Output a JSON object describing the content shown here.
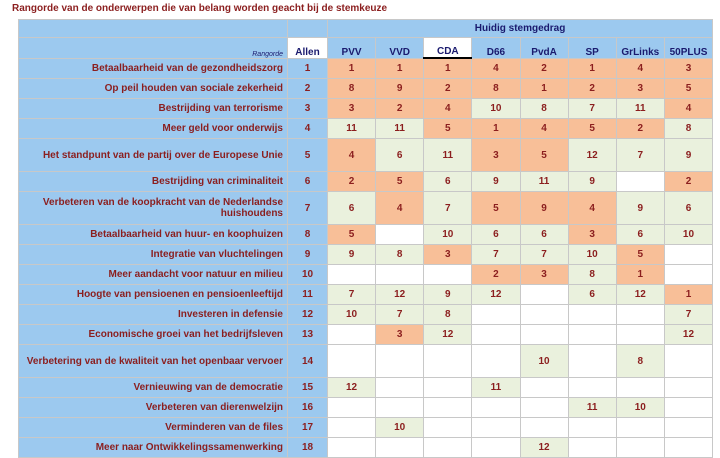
{
  "title": "Rangorde van de onderwerpen die van belang worden geacht bij de stemkeuze",
  "header": {
    "rangorde_label": "Rangorde",
    "allen_label": "Allen",
    "group_label": "Huidig stemgedrag",
    "parties": [
      "PVV",
      "VVD",
      "CDA",
      "D66",
      "PvdA",
      "SP",
      "GrLinks",
      "50PLUS"
    ]
  },
  "colors": {
    "peach": "#f8bf98",
    "green": "#eaf1dd",
    "blue": "#9cc9ef",
    "text": "#8b1e1e"
  },
  "rows": [
    {
      "label": "Betaalbaarheid van de gezondheidszorg",
      "rank": "1",
      "values": [
        "1",
        "1",
        "1",
        "4",
        "2",
        "1",
        "4",
        "3"
      ],
      "colors": [
        "p",
        "p",
        "p",
        "p",
        "p",
        "p",
        "p",
        "p"
      ]
    },
    {
      "label": "Op peil houden van sociale zekerheid",
      "rank": "2",
      "values": [
        "8",
        "9",
        "2",
        "8",
        "1",
        "2",
        "3",
        "5"
      ],
      "colors": [
        "p",
        "p",
        "p",
        "p",
        "p",
        "p",
        "p",
        "p"
      ]
    },
    {
      "label": "Bestrijding van terrorisme",
      "rank": "3",
      "values": [
        "3",
        "2",
        "4",
        "10",
        "8",
        "7",
        "11",
        "4"
      ],
      "colors": [
        "p",
        "p",
        "p",
        "g",
        "g",
        "g",
        "g",
        "p"
      ]
    },
    {
      "label": "Meer geld voor onderwijs",
      "rank": "4",
      "values": [
        "11",
        "11",
        "5",
        "1",
        "4",
        "5",
        "2",
        "8"
      ],
      "colors": [
        "g",
        "g",
        "p",
        "p",
        "p",
        "p",
        "p",
        "g"
      ]
    },
    {
      "label": "Het standpunt van de partij over de Europese Unie",
      "rank": "5",
      "values": [
        "4",
        "6",
        "11",
        "3",
        "5",
        "12",
        "7",
        "9"
      ],
      "colors": [
        "p",
        "g",
        "g",
        "p",
        "p",
        "g",
        "g",
        "g"
      ],
      "tall": true
    },
    {
      "label": "Bestrijding van criminaliteit",
      "rank": "6",
      "values": [
        "2",
        "5",
        "6",
        "9",
        "11",
        "9",
        "",
        "2"
      ],
      "colors": [
        "p",
        "p",
        "g",
        "g",
        "g",
        "g",
        "w",
        "p"
      ]
    },
    {
      "label": "Verbeteren van de koopkracht van de Nederlandse huishoudens",
      "rank": "7",
      "values": [
        "6",
        "4",
        "7",
        "5",
        "9",
        "4",
        "9",
        "6"
      ],
      "colors": [
        "g",
        "p",
        "g",
        "p",
        "p",
        "p",
        "g",
        "g"
      ],
      "tall": true
    },
    {
      "label": "Betaalbaarheid van huur- en koophuizen",
      "rank": "8",
      "values": [
        "5",
        "",
        "10",
        "6",
        "6",
        "3",
        "6",
        "10"
      ],
      "colors": [
        "p",
        "w",
        "g",
        "g",
        "g",
        "p",
        "g",
        "g"
      ]
    },
    {
      "label": "Integratie van vluchtelingen",
      "rank": "9",
      "values": [
        "9",
        "8",
        "3",
        "7",
        "7",
        "10",
        "5",
        ""
      ],
      "colors": [
        "g",
        "g",
        "p",
        "g",
        "g",
        "g",
        "p",
        "w"
      ]
    },
    {
      "label": "Meer aandacht voor natuur en milieu",
      "rank": "10",
      "values": [
        "",
        "",
        "",
        "2",
        "3",
        "8",
        "1",
        ""
      ],
      "colors": [
        "w",
        "w",
        "w",
        "p",
        "p",
        "g",
        "p",
        "w"
      ]
    },
    {
      "label": "Hoogte van pensioenen en pensioenleeftijd",
      "rank": "11",
      "values": [
        "7",
        "12",
        "9",
        "12",
        "",
        "6",
        "12",
        "1"
      ],
      "colors": [
        "g",
        "g",
        "g",
        "g",
        "w",
        "g",
        "g",
        "p"
      ]
    },
    {
      "label": "Investeren in defensie",
      "rank": "12",
      "values": [
        "10",
        "7",
        "8",
        "",
        "",
        "",
        "",
        "7"
      ],
      "colors": [
        "g",
        "g",
        "g",
        "w",
        "w",
        "w",
        "w",
        "g"
      ]
    },
    {
      "label": "Economische groei van het bedrijfsleven",
      "rank": "13",
      "values": [
        "",
        "3",
        "12",
        "",
        "",
        "",
        "",
        "12"
      ],
      "colors": [
        "w",
        "p",
        "g",
        "w",
        "w",
        "w",
        "w",
        "g"
      ]
    },
    {
      "label": "Verbetering van de kwaliteit van het openbaar vervoer",
      "rank": "14",
      "values": [
        "",
        "",
        "",
        "",
        "10",
        "",
        "8",
        ""
      ],
      "colors": [
        "w",
        "w",
        "w",
        "w",
        "g",
        "w",
        "g",
        "w"
      ],
      "tall": true
    },
    {
      "label": "Vernieuwing van  de democratie",
      "rank": "15",
      "values": [
        "12",
        "",
        "",
        "11",
        "",
        "",
        "",
        ""
      ],
      "colors": [
        "g",
        "w",
        "w",
        "g",
        "w",
        "w",
        "w",
        "w"
      ]
    },
    {
      "label": "Verbeteren van dierenwelzijn",
      "rank": "16",
      "values": [
        "",
        "",
        "",
        "",
        "",
        "11",
        "10",
        ""
      ],
      "colors": [
        "w",
        "w",
        "w",
        "w",
        "w",
        "g",
        "g",
        "w"
      ]
    },
    {
      "label": "Verminderen van de files",
      "rank": "17",
      "values": [
        "",
        "10",
        "",
        "",
        "",
        "",
        "",
        ""
      ],
      "colors": [
        "w",
        "g",
        "w",
        "w",
        "w",
        "w",
        "w",
        "w"
      ]
    },
    {
      "label": "Meer naar Ontwikkelingssamenwerking",
      "rank": "18",
      "values": [
        "",
        "",
        "",
        "",
        "12",
        "",
        "",
        ""
      ],
      "colors": [
        "w",
        "w",
        "w",
        "w",
        "g",
        "w",
        "w",
        "w"
      ]
    }
  ]
}
